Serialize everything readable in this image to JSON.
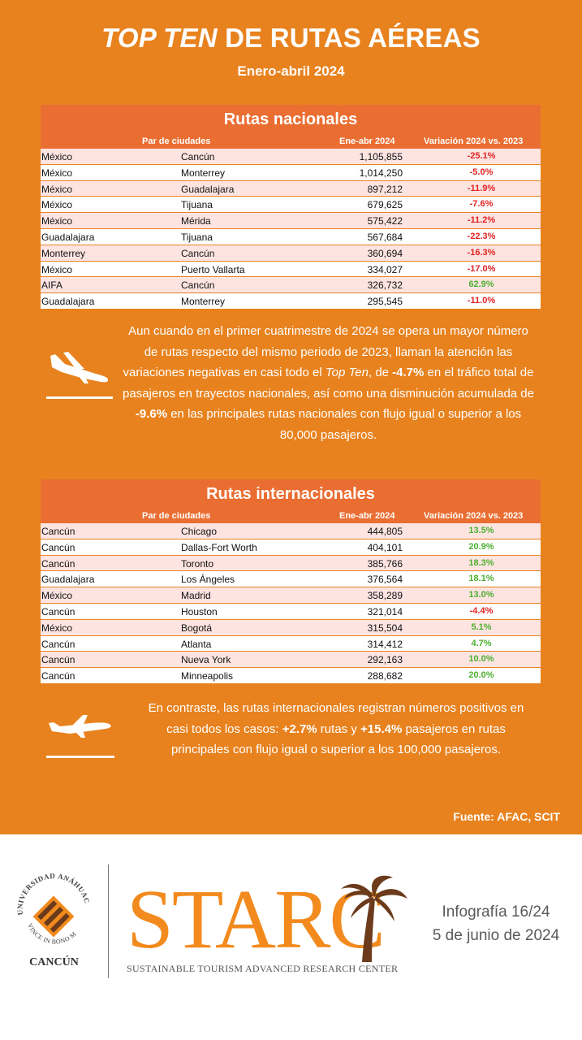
{
  "header": {
    "title_em": "TOP TEN",
    "title_rest": " DE RUTAS AÉREAS",
    "subtitle": "Enero-abril 2024"
  },
  "column_headers": {
    "pair": "Par de ciudades",
    "value": "Ene-abr 2024",
    "variation": "Variación 2024 vs. 2023"
  },
  "nacionales": {
    "title": "Rutas nacionales",
    "rows": [
      {
        "origin": "México",
        "destination": "Cancún",
        "value": "1,105,855",
        "variation": "-25.1%",
        "trend": "neg"
      },
      {
        "origin": "México",
        "destination": "Monterrey",
        "value": "1,014,250",
        "variation": "-5.0%",
        "trend": "neg"
      },
      {
        "origin": "México",
        "destination": "Guadalajara",
        "value": "897,212",
        "variation": "-11.9%",
        "trend": "neg"
      },
      {
        "origin": "México",
        "destination": "Tijuana",
        "value": "679,625",
        "variation": "-7.6%",
        "trend": "neg"
      },
      {
        "origin": "México",
        "destination": "Mérida",
        "value": "575,422",
        "variation": "-11.2%",
        "trend": "neg"
      },
      {
        "origin": "Guadalajara",
        "destination": "Tijuana",
        "value": "567,684",
        "variation": "-22.3%",
        "trend": "neg"
      },
      {
        "origin": "Monterrey",
        "destination": "Cancún",
        "value": "360,694",
        "variation": "-16.3%",
        "trend": "neg"
      },
      {
        "origin": "México",
        "destination": "Puerto Vallarta",
        "value": "334,027",
        "variation": "-17.0%",
        "trend": "neg"
      },
      {
        "origin": "AIFA",
        "destination": "Cancún",
        "value": "326,732",
        "variation": "62.9%",
        "trend": "pos"
      },
      {
        "origin": "Guadalajara",
        "destination": "Monterrey",
        "value": "295,545",
        "variation": "-11.0%",
        "trend": "neg"
      }
    ]
  },
  "para1": {
    "t1": "Aun cuando en el primer cuatrimestre de 2024 se opera un mayor número de rutas respecto del mismo periodo de 2023, llaman la atención las variaciones negativas en casi todo el ",
    "em": "Top Ten",
    "t2": ", de ",
    "b1": "-4.7%",
    "t3": " en el tráfico total de pasajeros en trayectos nacionales, así como una disminución acumulada de ",
    "b2": "-9.6%",
    "t4": " en las principales rutas nacionales con flujo igual o superior a los 80,000 pasajeros."
  },
  "internacionales": {
    "title": "Rutas internacionales",
    "rows": [
      {
        "origin": "Cancún",
        "destination": "Chicago",
        "value": "444,805",
        "variation": "13.5%",
        "trend": "pos"
      },
      {
        "origin": "Cancún",
        "destination": "Dallas-Fort Worth",
        "value": "404,101",
        "variation": "20.9%",
        "trend": "pos"
      },
      {
        "origin": "Cancún",
        "destination": "Toronto",
        "value": "385,766",
        "variation": "18.3%",
        "trend": "pos"
      },
      {
        "origin": "Guadalajara",
        "destination": "Los Ángeles",
        "value": "376,564",
        "variation": "18.1%",
        "trend": "pos"
      },
      {
        "origin": "México",
        "destination": "Madrid",
        "value": "358,289",
        "variation": "13.0%",
        "trend": "pos"
      },
      {
        "origin": "Cancún",
        "destination": "Houston",
        "value": "321,014",
        "variation": "-4.4%",
        "trend": "neg"
      },
      {
        "origin": "México",
        "destination": "Bogotá",
        "value": "315,504",
        "variation": "5.1%",
        "trend": "pos"
      },
      {
        "origin": "Cancún",
        "destination": "Atlanta",
        "value": "314,412",
        "variation": "4.7%",
        "trend": "pos"
      },
      {
        "origin": "Cancún",
        "destination": "Nueva York",
        "value": "292,163",
        "variation": "10.0%",
        "trend": "pos"
      },
      {
        "origin": "Cancún",
        "destination": "Minneapolis",
        "value": "288,682",
        "variation": "20.0%",
        "trend": "pos"
      }
    ]
  },
  "para2": {
    "t1": "En contraste, las rutas internacionales registran números positivos en casi todos los casos: ",
    "b1": "+2.7%",
    "t2": " rutas y ",
    "b2": "+15.4%",
    "t3": " pasajeros en rutas principales con flujo igual o superior a los 100,000 pasajeros."
  },
  "fuente": "Fuente: AFAC, SCIT",
  "footer": {
    "university_ring": "UNIVERSIDAD ANÁHUAC",
    "university_motto": "VINCE IN BONO MALUM",
    "city": "CANCÚN",
    "brand": "STARC",
    "brand_sub": "SUSTAINABLE TOURISM ADVANCED RESEARCH CENTER",
    "info_line1": "Infografía 16/24",
    "info_line2": "5 de junio de 2024"
  },
  "colors": {
    "background": "#e8821e",
    "table_header": "#ea6e32",
    "negative": "#e32222",
    "positive": "#4caf2f",
    "brand": "#f28a1d"
  },
  "icons": [
    "airplane-landing-icon",
    "airplane-takeoff-icon",
    "university-logo",
    "palm-tree-icon"
  ]
}
